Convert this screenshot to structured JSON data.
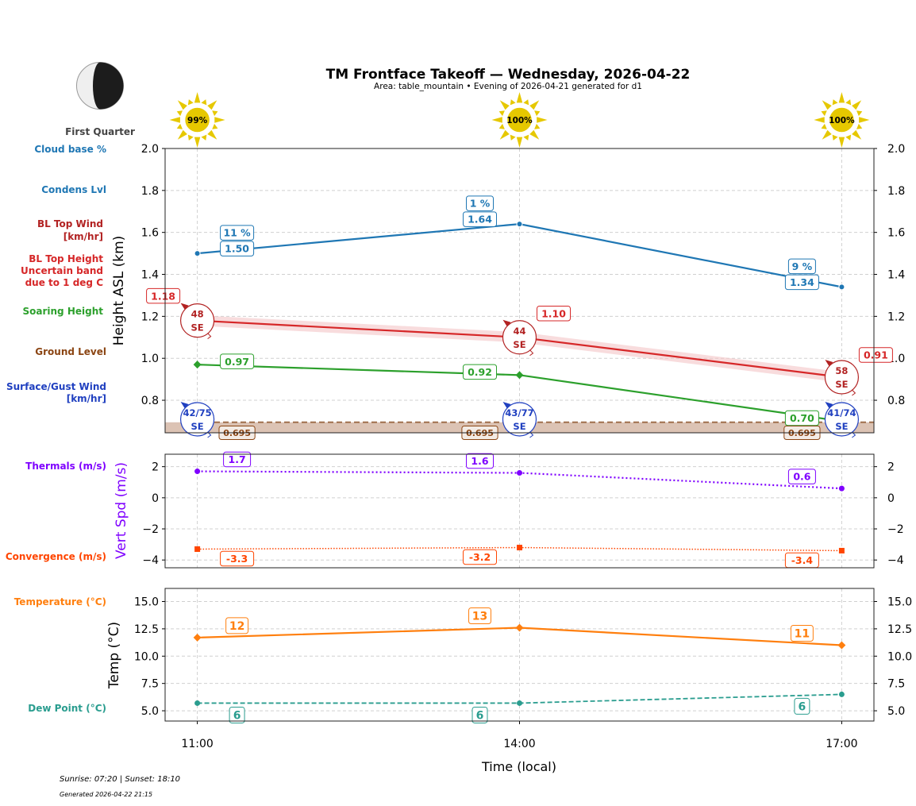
{
  "title": "TM Frontface Takeoff — Wednesday, 2026-04-22",
  "subtitle": "Area: table_mountain • Evening of 2026-04-21 generated for d1",
  "moon": {
    "phase": "First Quarter",
    "icon": "moon-first-quarter-icon"
  },
  "sun_icons": [
    "99%",
    "100%",
    "100%"
  ],
  "left_labels": {
    "cloud_base": "Cloud base %",
    "condens": "Condens Lvl",
    "bl_wind_1": "BL Top Wind",
    "bl_wind_2": "[km/hr]",
    "bl_height_1": "BL Top Height",
    "bl_height_2": "Uncertain band",
    "bl_height_3": "due to 1 deg C",
    "soaring": "Soaring Height",
    "ground": "Ground Level",
    "surface_1": "Surface/Gust Wind",
    "surface_2": "[km/hr]",
    "thermals": "Thermals (m/s)",
    "convergence": "Convergence (m/s)",
    "temperature": "Temperature (°C)",
    "dew": "Dew Point (°C)"
  },
  "footer": {
    "sun": "Sunrise: 07:20 | Sunset: 18:10",
    "generated": "Generated 2026-04-22 21:15"
  },
  "colors": {
    "cloud": "#1f77b4",
    "bl_wind": "#b22222",
    "bl_height": "#d62728",
    "soaring": "#2ca02c",
    "ground": "#8b4513",
    "surface": "#2040c0",
    "thermals": "#7f00ff",
    "convergence": "#ff4500",
    "temperature": "#ff7f0e",
    "dew": "#2a9d8f",
    "sun": "#e6c800"
  },
  "chart_data": [
    {
      "type": "line",
      "ylabel": "Height ASL (km)",
      "x": [
        "11:00",
        "14:00",
        "17:00"
      ],
      "xlim": [
        "10:42",
        "17:18"
      ],
      "ylim": [
        0.645,
        2.0
      ],
      "yticks": [
        "2.0",
        "1.8",
        "1.6",
        "1.4",
        "1.2",
        "1.0",
        "0.8"
      ],
      "grid": true,
      "series": {
        "condens_lvl": {
          "values": [
            1.5,
            1.64,
            1.34
          ],
          "labels": [
            "1.50",
            "1.64",
            "1.34"
          ]
        },
        "cloud_base_pct": {
          "values": [
            11,
            1,
            9
          ],
          "labels": [
            "11 %",
            "1 %",
            "9 %"
          ]
        },
        "bl_top_height": {
          "values": [
            1.18,
            1.1,
            0.91
          ],
          "labels": [
            "1.18",
            "1.10",
            "0.91"
          ],
          "uncertainty": 0.025
        },
        "bl_top_wind": [
          {
            "speed": "48",
            "dir": "SE"
          },
          {
            "speed": "44",
            "dir": "SE"
          },
          {
            "speed": "58",
            "dir": "SE"
          }
        ],
        "soaring_height": {
          "values": [
            0.97,
            0.92,
            0.7
          ],
          "labels": [
            "0.97",
            "0.92",
            "0.70"
          ]
        },
        "ground_level": {
          "values": [
            0.695,
            0.695,
            0.695
          ],
          "labels": [
            "0.695",
            "0.695",
            "0.695"
          ]
        },
        "surface_wind": [
          {
            "speed": "42/75",
            "dir": "SE"
          },
          {
            "speed": "43/77",
            "dir": "SE"
          },
          {
            "speed": "41/74",
            "dir": "SE"
          }
        ]
      }
    },
    {
      "type": "line",
      "ylabel": "Vert Spd (m/s)",
      "x": [
        "11:00",
        "14:00",
        "17:00"
      ],
      "ylim": [
        -4.5,
        2.8
      ],
      "yticks": [
        "2",
        "0",
        "−2",
        "−4"
      ],
      "grid": true,
      "series": {
        "thermals": {
          "values": [
            1.7,
            1.6,
            0.6
          ],
          "labels": [
            "1.7",
            "1.6",
            "0.6"
          ]
        },
        "convergence": {
          "values": [
            -3.3,
            -3.2,
            -3.4
          ],
          "labels": [
            "-3.3",
            "-3.2",
            "-3.4"
          ]
        }
      }
    },
    {
      "type": "line",
      "ylabel": "Temp (°C)",
      "xlabel": "Time (local)",
      "x": [
        "11:00",
        "14:00",
        "17:00"
      ],
      "xticks": [
        "11:00",
        "14:00",
        "17:00"
      ],
      "ylim": [
        4.06,
        16.2
      ],
      "yticks": [
        "15.0",
        "12.5",
        "10.0",
        "7.5",
        "5.0"
      ],
      "grid": true,
      "series": {
        "temperature": {
          "values": [
            11.7,
            12.6,
            11.0
          ],
          "labels": [
            "12",
            "13",
            "11"
          ]
        },
        "dew_point": {
          "values": [
            5.7,
            5.7,
            6.5
          ],
          "labels": [
            "6",
            "6",
            "6"
          ]
        }
      }
    }
  ]
}
